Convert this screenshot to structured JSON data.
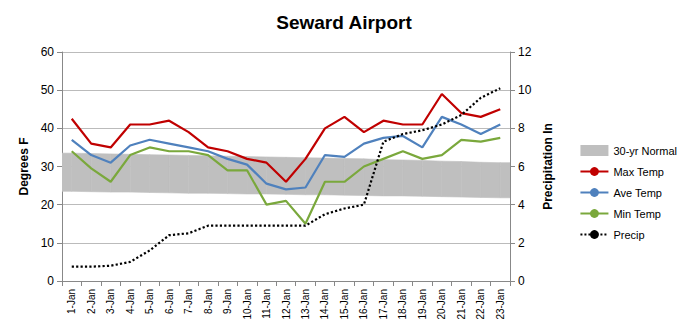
{
  "chart_data": {
    "type": "line",
    "title": "Seward Airport",
    "y_label": "Degrees F",
    "y2_label": "Precipitation In",
    "categories": [
      "1-Jan",
      "2-Jan",
      "3-Jan",
      "4-Jan",
      "5-Jan",
      "6-Jan",
      "7-Jan",
      "8-Jan",
      "9-Jan",
      "10-Jan",
      "11-Jan",
      "12-Jan",
      "13-Jan",
      "14-Jan",
      "15-Jan",
      "16-Jan",
      "17-Jan",
      "18-Jan",
      "19-Jan",
      "20-Jan",
      "21-Jan",
      "22-Jan",
      "23-Jan"
    ],
    "series": [
      {
        "name": "30-yr Normal",
        "type": "band",
        "color": "#bfbfbf",
        "low": [
          23.5,
          23.4,
          23.3,
          23.3,
          23.2,
          23.1,
          23.0,
          23.0,
          22.9,
          22.8,
          22.8,
          22.7,
          22.6,
          22.6,
          22.5,
          22.4,
          22.3,
          22.3,
          22.2,
          22.1,
          22.0,
          21.9,
          21.8
        ],
        "high": [
          33.5,
          33.4,
          33.3,
          33.2,
          33.1,
          33.0,
          32.9,
          32.8,
          32.7,
          32.6,
          32.5,
          32.4,
          32.3,
          32.2,
          32.1,
          32.0,
          31.8,
          31.7,
          31.6,
          31.4,
          31.3,
          31.1,
          31.0
        ]
      },
      {
        "name": "Max Temp",
        "color": "#c00000",
        "values": [
          42.5,
          36,
          35,
          41,
          41,
          42,
          39,
          35,
          34,
          32,
          31,
          26,
          32,
          40,
          43,
          39,
          42,
          41,
          41,
          49,
          44,
          43,
          45
        ]
      },
      {
        "name": "Ave Temp",
        "color": "#4f81bd",
        "values": [
          37,
          33,
          31,
          35.5,
          37,
          36,
          35,
          34,
          32,
          30.5,
          25.5,
          24,
          24.5,
          33,
          32.5,
          36,
          37.5,
          38,
          35,
          43,
          41,
          38.5,
          41
        ]
      },
      {
        "name": "Min Temp",
        "color": "#7aa83c",
        "values": [
          34,
          29.5,
          26,
          33,
          35,
          34,
          34,
          33,
          29,
          29,
          20,
          21,
          15,
          26,
          26,
          30,
          32,
          34,
          32,
          33,
          37,
          36.5,
          37.5
        ]
      },
      {
        "name": "Precip",
        "color": "#000000",
        "line_style": "dotted",
        "axis": "y2",
        "values": [
          0.75,
          0.75,
          0.8,
          1.0,
          1.6,
          2.4,
          2.5,
          2.9,
          2.9,
          2.9,
          2.9,
          2.9,
          2.9,
          3.5,
          3.8,
          4.0,
          7.3,
          7.7,
          7.9,
          8.2,
          8.7,
          9.6,
          10.1
        ]
      }
    ],
    "ylim": [
      0,
      60
    ],
    "yticks": [
      0,
      10,
      20,
      30,
      40,
      50,
      60
    ],
    "y2lim": [
      0,
      12
    ],
    "y2ticks": [
      0,
      2,
      4,
      6,
      8,
      10,
      12
    ],
    "grid": true,
    "legend": "right"
  }
}
